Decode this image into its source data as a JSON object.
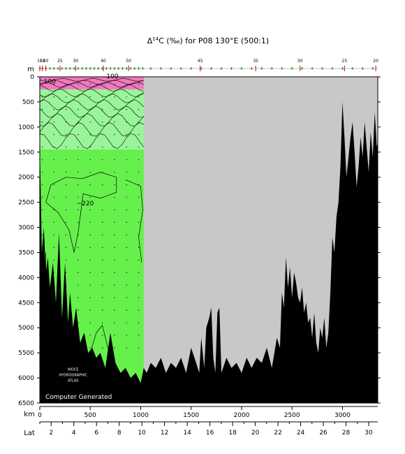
{
  "chart_data": {
    "type": "area",
    "title": "Δ¹⁴C (‰) for P08 130°E (500:1)",
    "title_parts": {
      "pre": "Δ",
      "sup": "14",
      "post": "C (‰) for P08 130°E (500:1)"
    },
    "xlabel": "km",
    "ylabel": "m",
    "secondary_xlabel": "Lat",
    "xlim": [
      0,
      3350
    ],
    "ylim": [
      6500,
      0
    ],
    "x_ticks": [
      0,
      500,
      1000,
      1500,
      2000,
      2500,
      3000
    ],
    "y_ticks": [
      0,
      500,
      1000,
      1500,
      2000,
      2500,
      3000,
      3500,
      4000,
      4500,
      5000,
      5500,
      6000,
      6500
    ],
    "lat_ticks": [
      2,
      4,
      6,
      8,
      10,
      12,
      14,
      16,
      18,
      20,
      22,
      24,
      26,
      28,
      30
    ],
    "lat_range": [
      1.0,
      30.8
    ],
    "station_labels": [
      {
        "km": 0,
        "label": "15"
      },
      {
        "km": 25,
        "label": "18"
      },
      {
        "km": 60,
        "label": "20"
      },
      {
        "km": 200,
        "label": "25"
      },
      {
        "km": 355,
        "label": "30"
      },
      {
        "km": 630,
        "label": "40"
      },
      {
        "km": 880,
        "label": "50"
      },
      {
        "km": 1590,
        "label": "45"
      },
      {
        "km": 2140,
        "label": "35"
      },
      {
        "km": 2580,
        "label": "30"
      },
      {
        "km": 3020,
        "label": "25"
      },
      {
        "km": 3330,
        "label": "20"
      }
    ],
    "station_km": [
      0,
      25,
      60,
      100,
      140,
      180,
      220,
      260,
      300,
      340,
      380,
      420,
      460,
      500,
      540,
      580,
      620,
      660,
      700,
      740,
      780,
      820,
      860,
      900,
      940,
      980,
      1020,
      1100,
      1200,
      1300,
      1400,
      1500,
      1600,
      1700,
      1800,
      1900,
      2000,
      2100,
      2200,
      2300,
      2400,
      2500,
      2600,
      2700,
      2800,
      2900,
      3000,
      3100,
      3200,
      3300
    ],
    "sampled_x_end_km": 1030,
    "contour_labels": [
      {
        "km": 100,
        "depth": 130,
        "text": "100"
      },
      {
        "km": 720,
        "depth": 30,
        "text": "100"
      },
      {
        "km": 450,
        "depth": 2560,
        "text": "−220"
      }
    ],
    "contour_depths": [
      60,
      110,
      160,
      220,
      320,
      430,
      560,
      700,
      860,
      1050,
      1280
    ],
    "color_bands": [
      {
        "from": 0,
        "to": 250,
        "color": "#f279c0"
      },
      {
        "from": 250,
        "to": 1450,
        "color": "#99f599"
      },
      {
        "from": 1450,
        "to": 6500,
        "color": "#66f04c"
      }
    ],
    "bottom_profile": {
      "km": [
        0,
        20,
        40,
        60,
        80,
        100,
        130,
        160,
        190,
        220,
        250,
        280,
        300,
        330,
        360,
        400,
        440,
        480,
        520,
        560,
        600,
        650,
        700,
        750,
        800,
        850,
        900,
        950,
        1000,
        1030,
        1060,
        1100,
        1150,
        1200,
        1250,
        1300,
        1350,
        1400,
        1450,
        1500,
        1550,
        1580,
        1600,
        1630,
        1650,
        1680,
        1700,
        1720,
        1740,
        1760,
        1780,
        1800,
        1850,
        1900,
        1950,
        2000,
        2050,
        2100,
        2150,
        2200,
        2250,
        2300,
        2350,
        2380,
        2400,
        2420,
        2440,
        2460,
        2480,
        2500,
        2520,
        2540,
        2560,
        2580,
        2600,
        2620,
        2640,
        2660,
        2680,
        2700,
        2720,
        2740,
        2760,
        2780,
        2800,
        2820,
        2840,
        2860,
        2880,
        2900,
        2920,
        2940,
        2960,
        2980,
        3000,
        3020,
        3040,
        3060,
        3080,
        3100,
        3120,
        3140,
        3160,
        3180,
        3200,
        3220,
        3240,
        3260,
        3280,
        3300,
        3320,
        3340,
        3350
      ],
      "depth": [
        1300,
        3500,
        3000,
        3900,
        3600,
        4200,
        3700,
        4500,
        3100,
        4800,
        3700,
        4900,
        4300,
        5000,
        4600,
        5300,
        5100,
        5500,
        5400,
        5600,
        5500,
        5800,
        5100,
        5700,
        5900,
        5800,
        6000,
        5900,
        6100,
        5800,
        5900,
        5700,
        5800,
        5600,
        5900,
        5700,
        5800,
        5600,
        5900,
        5400,
        5700,
        5900,
        5200,
        5800,
        5000,
        4800,
        4600,
        5600,
        5900,
        4700,
        4600,
        5900,
        5600,
        5800,
        5700,
        5900,
        5600,
        5800,
        5600,
        5700,
        5400,
        5800,
        5200,
        5400,
        4300,
        4600,
        3600,
        4200,
        3800,
        4400,
        3900,
        4100,
        4400,
        4500,
        4200,
        4700,
        4500,
        4900,
        4800,
        5200,
        4700,
        5300,
        5500,
        5000,
        5200,
        4800,
        5400,
        5100,
        4300,
        3200,
        3500,
        2800,
        2500,
        1800,
        500,
        1200,
        2000,
        1600,
        1200,
        900,
        1500,
        2200,
        1800,
        1200,
        1600,
        900,
        1400,
        1900,
        1100,
        1600,
        700,
        1400,
        1300
      ]
    },
    "annotations": [
      "WOCE",
      "HYDROGRAPHIC",
      "ATLAS"
    ],
    "footer_text": "Computer Generated",
    "colors": {
      "land": "#000000",
      "no_data": "#c8c8c8",
      "surface_band": "#f279c0",
      "upper_band": "#99f599",
      "deep_band": "#66f04c",
      "contour": "#000000",
      "station_marker": "#2a8a2a",
      "station_tick": "#cc0000"
    }
  }
}
